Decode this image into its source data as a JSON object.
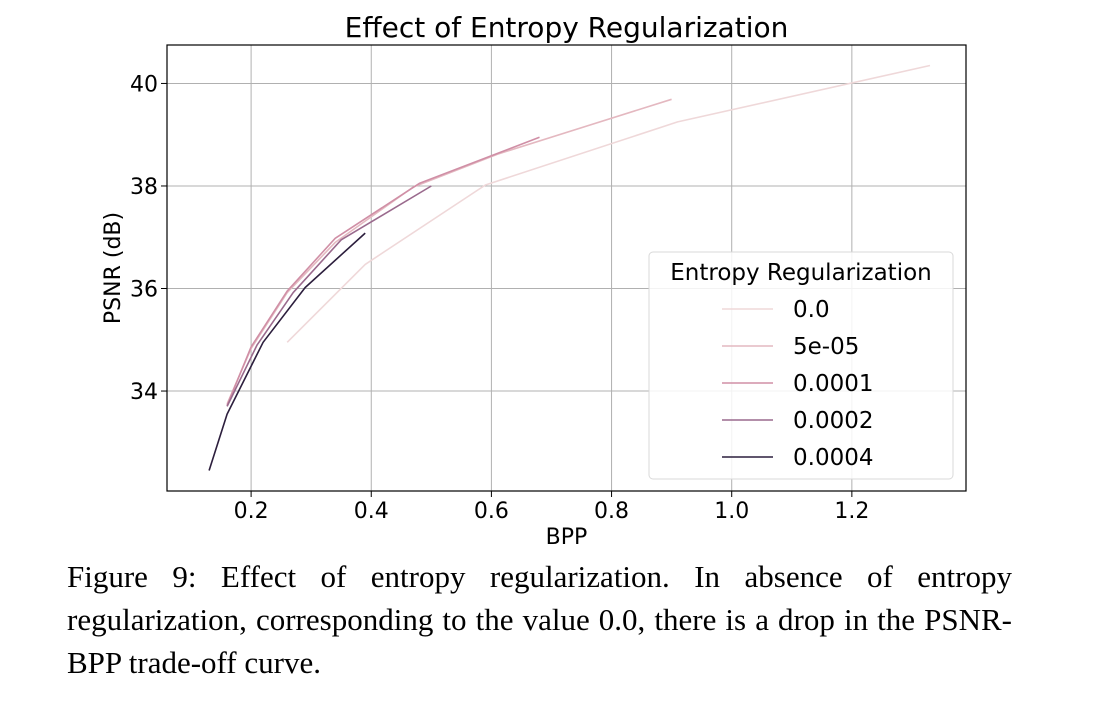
{
  "chart_data": {
    "type": "line",
    "title": "Effect of Entropy Regularization",
    "xlabel": "BPP",
    "ylabel": "PSNR (dB)",
    "xlim": [
      0.06,
      1.39
    ],
    "ylim": [
      32.05,
      40.75
    ],
    "xticks": [
      0.2,
      0.4,
      0.6,
      0.8,
      1.0,
      1.2
    ],
    "xtick_labels": [
      "0.2",
      "0.4",
      "0.6",
      "0.8",
      "1.0",
      "1.2"
    ],
    "yticks": [
      34,
      36,
      38,
      40
    ],
    "ytick_labels": [
      "34",
      "36",
      "38",
      "40"
    ],
    "grid": true,
    "legend": {
      "title": "Entropy Regularization",
      "placement": "center-right"
    },
    "series": [
      {
        "name": "0.0",
        "color": "#efd8d9",
        "x": [
          0.26,
          0.39,
          0.59,
          0.91,
          1.33
        ],
        "y": [
          34.95,
          36.47,
          38.02,
          39.25,
          40.35
        ]
      },
      {
        "name": "5e-05",
        "color": "#e4b8c0",
        "x": [
          0.16,
          0.2,
          0.26,
          0.34,
          0.47,
          0.61,
          0.9
        ],
        "y": [
          33.75,
          34.83,
          35.92,
          36.9,
          37.98,
          38.62,
          39.69
        ]
      },
      {
        "name": "0.0001",
        "color": "#d08fa6",
        "x": [
          0.16,
          0.2,
          0.26,
          0.34,
          0.48,
          0.68
        ],
        "y": [
          33.72,
          34.86,
          35.95,
          36.98,
          38.05,
          38.95
        ]
      },
      {
        "name": "0.0002",
        "color": "#9a6a8d",
        "x": [
          0.16,
          0.21,
          0.27,
          0.35,
          0.5
        ],
        "y": [
          33.7,
          34.9,
          35.92,
          36.95,
          38.0
        ]
      },
      {
        "name": "0.0004",
        "color": "#2c1e3d",
        "x": [
          0.13,
          0.16,
          0.22,
          0.29,
          0.39
        ],
        "y": [
          32.45,
          33.55,
          34.95,
          36.02,
          37.08
        ]
      }
    ]
  },
  "caption": {
    "text": "Figure 9: Effect of entropy regularization. In absence of entropy regularization, corresponding to the value 0.0, there is a drop in the PSNR-BPP trade-off curve."
  }
}
